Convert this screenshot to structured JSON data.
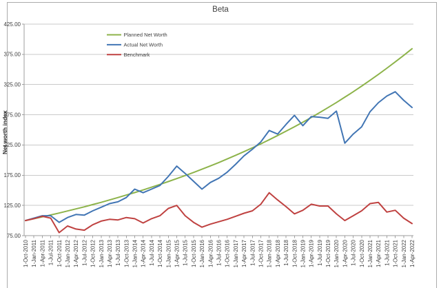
{
  "chart_data": {
    "type": "line",
    "title": "Beta",
    "xlabel": "",
    "ylabel": "Net worth index",
    "ylim": [
      75,
      425
    ],
    "grid": true,
    "legend_position": "inside-top-left",
    "yticks": [
      425,
      375,
      325,
      275,
      225,
      175,
      125,
      75
    ],
    "ytick_labels": [
      "425.00",
      "375.00",
      "325.00",
      "275.00",
      "225.00",
      "175.00",
      "125.00",
      "75.00"
    ],
    "categories": [
      "1-Oct-2010",
      "1-Jan-2011",
      "1-Apr-2011",
      "1-Jul-2011",
      "1-Oct-2011",
      "1-Jan-2012",
      "1-Apr-2012",
      "1-Jul-2012",
      "1-Oct-2012",
      "1-Jan-2013",
      "1-Apr-2013",
      "1-Jul-2013",
      "1-Oct-2013",
      "1-Jan-2014",
      "1-Apr-2014",
      "1-Jul-2014",
      "1-Oct-2014",
      "1-Jan-2015",
      "1-Apr-2015",
      "1-Jul-2015",
      "1-Oct-2015",
      "1-Jan-2016",
      "1-Apr-2016",
      "1-Jul-2016",
      "1-Oct-2016",
      "1-Jan-2017",
      "1-Apr-2017",
      "1-Jul-2017",
      "1-Oct-2017",
      "1-Jan-2018",
      "1-Apr-2018",
      "1-Jul-2018",
      "1-Oct-2018",
      "1-Jan-2019",
      "1-Apr-2019",
      "1-Jul-2019",
      "1-Oct-2019",
      "1-Jan-2020",
      "1-Apr-2020",
      "1-Jul-2020",
      "1-Oct-2020",
      "1-Jan-2021",
      "1-Apr-2021",
      "1-Jul-2021",
      "1-Oct-2021",
      "1-Jan-2022",
      "1-Apr-2022"
    ],
    "series": [
      {
        "name": "Planned Net Worth",
        "color": "#8db34a",
        "values": [
          100.0,
          103.0,
          106.0,
          109.2,
          112.4,
          115.8,
          119.2,
          122.7,
          126.4,
          130.1,
          134.0,
          138.0,
          142.1,
          146.3,
          150.6,
          155.1,
          159.7,
          164.5,
          169.4,
          174.4,
          179.6,
          184.9,
          190.4,
          196.0,
          201.9,
          207.9,
          214.0,
          220.4,
          226.9,
          233.7,
          240.6,
          247.8,
          255.1,
          262.7,
          270.5,
          278.5,
          286.8,
          295.3,
          304.1,
          313.1,
          322.4,
          332.0,
          341.9,
          352.0,
          362.5,
          373.2,
          384.3
        ]
      },
      {
        "name": "Actual Net Worth",
        "color": "#4175b4",
        "values": [
          100,
          104,
          108,
          108,
          97,
          105,
          110,
          109,
          116,
          122,
          128,
          131,
          138,
          152,
          146,
          152,
          158,
          173,
          190,
          178,
          165,
          152,
          163,
          170,
          180,
          193,
          207,
          218,
          230,
          249,
          243,
          259,
          274,
          257,
          272,
          271,
          269,
          281,
          228,
          243,
          255,
          280,
          295,
          306,
          313,
          299,
          287
        ]
      },
      {
        "name": "Benchmark",
        "color": "#bf4140",
        "values": [
          100,
          103,
          107,
          104,
          80,
          91,
          86,
          84,
          93,
          99,
          102,
          101,
          105,
          103,
          96,
          103,
          108,
          120,
          125,
          108,
          97,
          89,
          94,
          98,
          102,
          107,
          112,
          116,
          127,
          146,
          134,
          123,
          111,
          117,
          127,
          124,
          124,
          111,
          100,
          108,
          116,
          128,
          130,
          114,
          117,
          104,
          95
        ]
      }
    ]
  },
  "style": {
    "gridline_color": "#c9c9c9",
    "axis_color": "#9e9e9e",
    "tick_label_color": "#404040",
    "border_color": "#ababab"
  }
}
